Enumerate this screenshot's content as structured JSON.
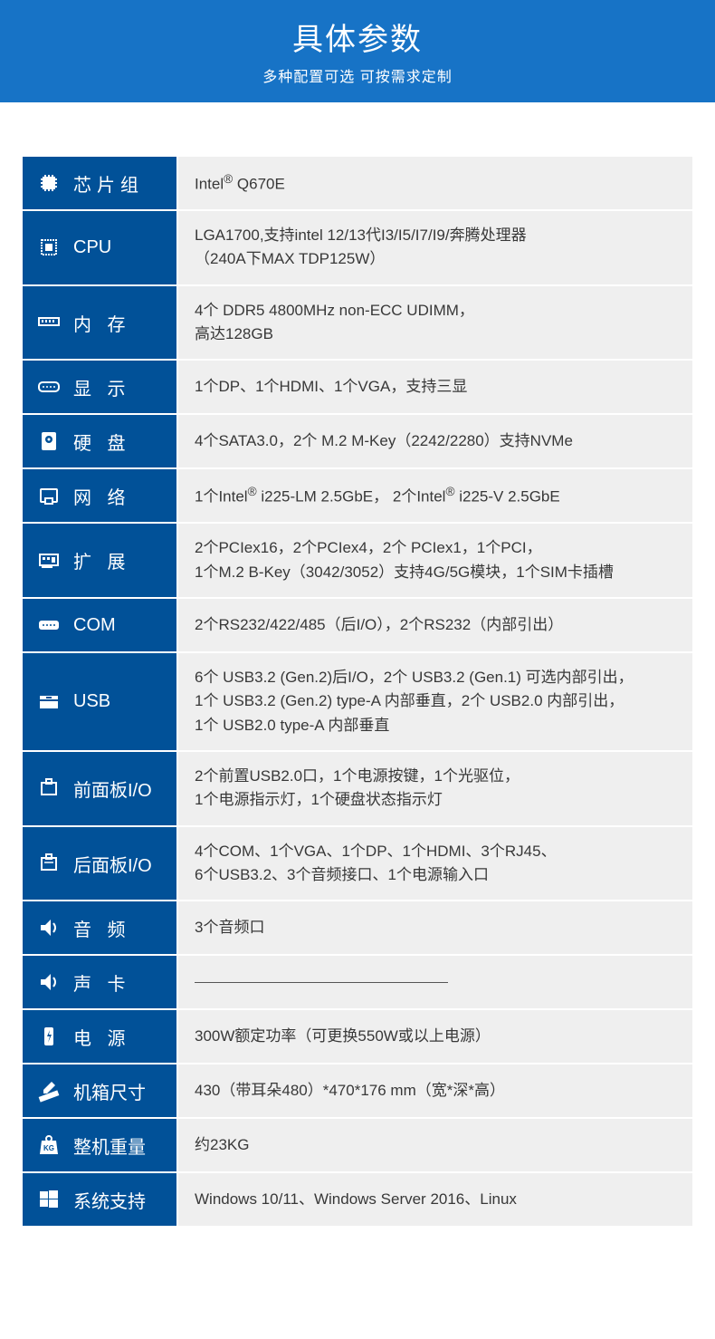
{
  "colors": {
    "header_bg": "#1773c6",
    "label_bg": "#015198",
    "value_bg": "#efefef",
    "value_text": "#383838",
    "white": "#ffffff"
  },
  "header": {
    "title": "具体参数",
    "subtitle": "多种配置可选 可按需求定制"
  },
  "rows": [
    {
      "icon": "chip",
      "label": "芯片组",
      "tight": false,
      "value_html": "Intel<sup>®</sup> Q670E"
    },
    {
      "icon": "cpu",
      "label": "CPU",
      "tight": true,
      "value_html": "LGA1700,支持intel 12/13代I3/I5/I7/I9/奔腾处理器<br>（240A下MAX TDP125W）"
    },
    {
      "icon": "ram",
      "label": "内 存",
      "tight": false,
      "value_html": "4个 DDR5 4800MHz non-ECC UDIMM，<br>高达128GB"
    },
    {
      "icon": "vga",
      "label": "显 示",
      "tight": false,
      "value_html": "1个DP、1个HDMI、1个VGA，支持三显"
    },
    {
      "icon": "hdd",
      "label": "硬 盘",
      "tight": false,
      "value_html": "4个SATA3.0，2个 M.2 M-Key（2242/2280）支持NVMe"
    },
    {
      "icon": "lan",
      "label": "网 络",
      "tight": false,
      "value_html": "1个Intel<sup>®</sup> i225-LM 2.5GbE， 2个Intel<sup>®</sup> i225-V 2.5GbE"
    },
    {
      "icon": "pci",
      "label": "扩 展",
      "tight": false,
      "value_html": "2个PCIex16，2个PCIex4，2个 PCIex1，1个PCI，<br>1个M.2 B-Key（3042/3052）支持4G/5G模块，1个SIM卡插槽"
    },
    {
      "icon": "serial",
      "label": "COM",
      "tight": true,
      "value_html": "2个RS232/422/485（后I/O），2个RS232（内部引出）"
    },
    {
      "icon": "usb",
      "label": "USB",
      "tight": true,
      "value_html": "6个 USB3.2 (Gen.2)后I/O，2个 USB3.2 (Gen.1) 可选内部引出，<br>1个 USB3.2 (Gen.2) type-A 内部垂直，2个 USB2.0 内部引出，<br>1个 USB2.0 type-A 内部垂直"
    },
    {
      "icon": "panel",
      "label": "前面板I/O",
      "tight": true,
      "value_html": "2个前置USB2.0口，1个电源按键，1个光驱位，<br>1个电源指示灯，1个硬盘状态指示灯"
    },
    {
      "icon": "panel2",
      "label": "后面板I/O",
      "tight": true,
      "value_html": "4个COM、1个VGA、1个DP、1个HDMI、3个RJ45、<br>6个USB3.2、3个音频接口、1个电源输入口"
    },
    {
      "icon": "speaker",
      "label": "音 频",
      "tight": false,
      "value_html": "3个音频口"
    },
    {
      "icon": "speaker",
      "label": "声 卡",
      "tight": false,
      "value_html": "<hr class='hr'>"
    },
    {
      "icon": "power",
      "label": "电 源",
      "tight": false,
      "value_html": "300W额定功率（可更换550W或以上电源）"
    },
    {
      "icon": "ruler",
      "label": "机箱尺寸",
      "tight": true,
      "value_html": "430（带耳朵480）*470*176 mm（宽*深*高）"
    },
    {
      "icon": "weight",
      "label": "整机重量",
      "tight": true,
      "value_html": "约23KG"
    },
    {
      "icon": "windows",
      "label": "系统支持",
      "tight": true,
      "value_html": "Windows 10/11、Windows Server 2016、Linux"
    }
  ]
}
